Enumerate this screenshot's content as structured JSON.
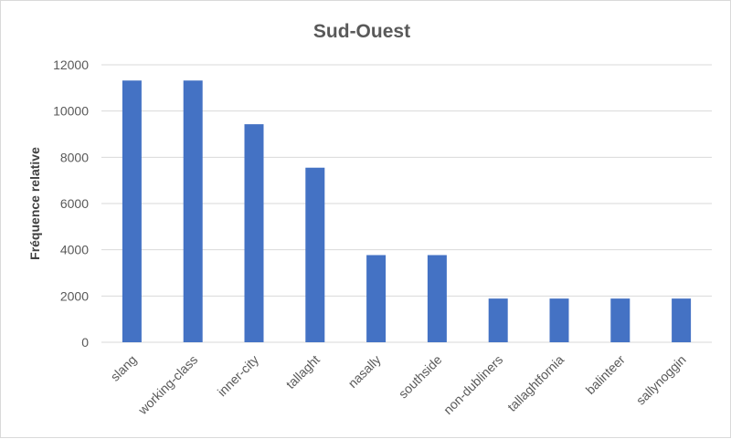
{
  "chart_data": {
    "type": "bar",
    "title": "Sud-Ouest",
    "xlabel": "",
    "ylabel": "Fréquence relative",
    "categories": [
      "slang",
      "working-class",
      "inner-city",
      "tallaght",
      "nasally",
      "southside",
      "non-dubliners",
      "tallaghtfornia",
      "balinteer",
      "sallynoggin"
    ],
    "values": [
      11320,
      11320,
      9430,
      7550,
      3770,
      3770,
      1890,
      1890,
      1890,
      1890
    ],
    "ylim": [
      0,
      12000
    ],
    "yticks": [
      0,
      2000,
      4000,
      6000,
      8000,
      10000,
      12000
    ],
    "grid": true,
    "legend": "none",
    "bar_color": "#4472C4"
  }
}
